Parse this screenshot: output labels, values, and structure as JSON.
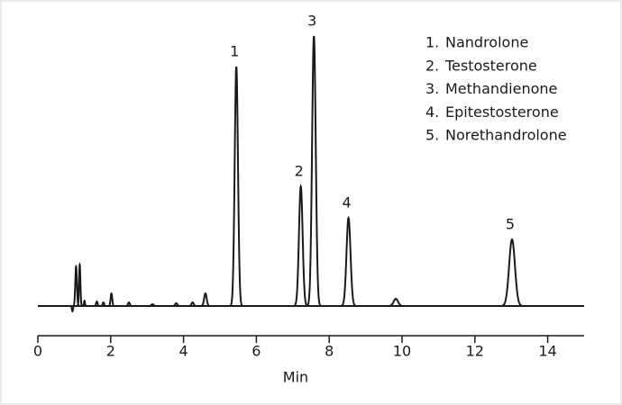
{
  "chart_data": {
    "type": "chromatogram",
    "x_label": "Min",
    "xlim": [
      0,
      15
    ],
    "xticks": [
      0,
      2,
      4,
      6,
      8,
      10,
      12,
      14
    ],
    "ylim": [
      -10,
      310
    ],
    "color": "#1a1a1a",
    "peaks": [
      {
        "time": 0.95,
        "height": -6,
        "width": 0.015
      },
      {
        "time": 1.05,
        "height": 44,
        "width": 0.022
      },
      {
        "time": 1.15,
        "height": 46,
        "width": 0.018
      },
      {
        "time": 1.28,
        "height": 6,
        "width": 0.015
      },
      {
        "time": 1.62,
        "height": 5,
        "width": 0.02
      },
      {
        "time": 1.8,
        "height": 4,
        "width": 0.02
      },
      {
        "time": 2.02,
        "height": 14,
        "width": 0.022
      },
      {
        "time": 2.5,
        "height": 4,
        "width": 0.025
      },
      {
        "time": 3.15,
        "height": 2,
        "width": 0.03
      },
      {
        "time": 3.8,
        "height": 3,
        "width": 0.03
      },
      {
        "time": 4.25,
        "height": 4,
        "width": 0.03
      },
      {
        "time": 4.6,
        "height": 14,
        "width": 0.035
      },
      {
        "label": "1",
        "time": 5.45,
        "height": 266,
        "width": 0.045
      },
      {
        "label": "2",
        "time": 7.22,
        "height": 133,
        "width": 0.05
      },
      {
        "label": "3",
        "time": 7.58,
        "height": 300,
        "width": 0.05
      },
      {
        "label": "4",
        "time": 8.53,
        "height": 98,
        "width": 0.055
      },
      {
        "time": 9.83,
        "height": 8,
        "width": 0.06
      },
      {
        "label": "5",
        "time": 13.02,
        "height": 74,
        "width": 0.08
      }
    ],
    "legend": [
      {
        "number": "1.",
        "name": "Nandrolone"
      },
      {
        "number": "2.",
        "name": "Testosterone"
      },
      {
        "number": "3.",
        "name": "Methandienone"
      },
      {
        "number": "4.",
        "name": "Epitestosterone"
      },
      {
        "number": "5.",
        "name": "Norethandrolone"
      }
    ]
  }
}
